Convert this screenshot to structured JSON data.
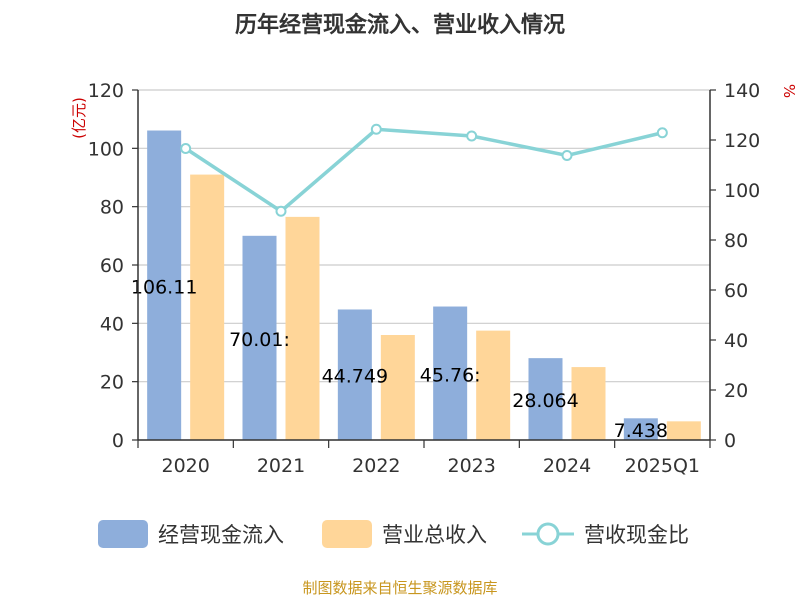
{
  "chart_data": {
    "type": "bar",
    "title": "历年经营现金流入、营业收入情况",
    "categories": [
      "2020",
      "2021",
      "2022",
      "2023",
      "2024",
      "2025Q1"
    ],
    "left_axis": {
      "unit": "(亿元)",
      "ylim": [
        0,
        120
      ],
      "ticks": [
        "0",
        "20",
        "40",
        "60",
        "80",
        "100",
        "120"
      ]
    },
    "right_axis": {
      "unit": "%",
      "ylim": [
        0,
        140
      ],
      "ticks": [
        "0",
        "20",
        "40",
        "60",
        "80",
        "100",
        "120",
        "140"
      ]
    },
    "series": [
      {
        "name": "经营现金流入",
        "type": "bar",
        "axis": "left",
        "color": "#8eaedb",
        "values": [
          106.11,
          70.01,
          44.749,
          45.763,
          28.064,
          7.438
        ],
        "labels": [
          "106.11",
          "70.01:",
          "44.749",
          "45.76:",
          "28.064",
          "7.438"
        ]
      },
      {
        "name": "营业总收入",
        "type": "bar",
        "axis": "left",
        "color": "#ffd699",
        "values": [
          91,
          76.5,
          36,
          37.5,
          25,
          6.4
        ]
      },
      {
        "name": "营收现金比",
        "type": "line",
        "axis": "right",
        "color": "#88d3d6",
        "values": [
          116.6,
          91.5,
          124.3,
          121.6,
          113.8,
          122.9
        ]
      }
    ],
    "grid": true,
    "legend_position": "bottom"
  },
  "footer": {
    "source": "制图数据来自恒生聚源数据库"
  }
}
